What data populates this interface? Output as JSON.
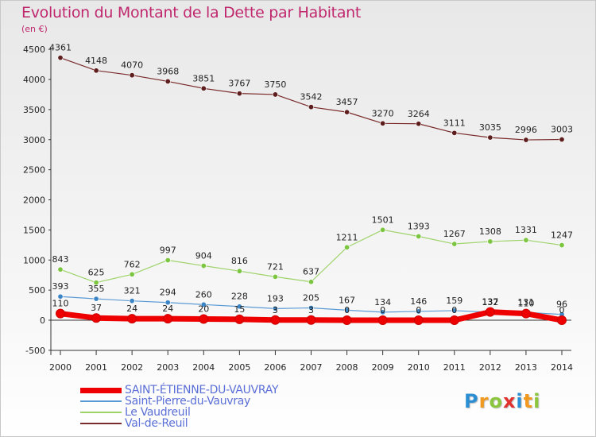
{
  "title": "Evolution du Montant de la Dette par Habitant",
  "unit_label": "(en €)",
  "logo": {
    "text": "Proxiti",
    "letters": [
      {
        "ch": "P",
        "color": "#2d8fd3"
      },
      {
        "ch": "r",
        "color": "#f29a1f"
      },
      {
        "ch": "o",
        "color": "#8cc63f"
      },
      {
        "ch": "x",
        "color": "#e0312f"
      },
      {
        "ch": "i",
        "color": "#2d8fd3"
      },
      {
        "ch": "t",
        "color": "#f29a1f"
      },
      {
        "ch": "i",
        "color": "#8cc63f"
      }
    ]
  },
  "chart_data": {
    "type": "line",
    "title": "Evolution du Montant de la Dette par Habitant",
    "ylabel": "(en €)",
    "ylim": [
      -500,
      4500
    ],
    "yticks": [
      -500,
      0,
      500,
      1000,
      1500,
      2000,
      2500,
      3000,
      3500,
      4000,
      4500
    ],
    "x": [
      2000,
      2001,
      2002,
      2003,
      2004,
      2005,
      2006,
      2007,
      2008,
      2009,
      2010,
      2011,
      2012,
      2013,
      2014
    ],
    "grid": false,
    "legend_position": "bottom-left",
    "series": [
      {
        "name": "Val-de-Reuil",
        "color": "#7a2b2b",
        "marker": "#5e1e1e",
        "width": 1.2,
        "values": [
          4361,
          4148,
          4070,
          3968,
          3851,
          3767,
          3750,
          3542,
          3457,
          3270,
          3264,
          3111,
          3035,
          2996,
          3003
        ]
      },
      {
        "name": "Le Vaudreuil",
        "color": "#9ed36a",
        "marker": "#7cc540",
        "width": 1.2,
        "values": [
          843,
          625,
          762,
          997,
          904,
          816,
          721,
          637,
          1211,
          1501,
          1393,
          1267,
          1308,
          1331,
          1247
        ]
      },
      {
        "name": "Saint-Pierre-du-Vauvray",
        "color": "#5b9bd5",
        "marker": "#3d86c6",
        "width": 1.2,
        "values": [
          393,
          355,
          321,
          294,
          260,
          228,
          193,
          205,
          167,
          134,
          146,
          159,
          132,
          131,
          96
        ]
      },
      {
        "name": "SAINT-ÉTIENNE-DU-VAUVRAY",
        "color": "#ee0000",
        "marker": "#ee0000",
        "width": 7,
        "values": [
          110,
          37,
          24,
          24,
          20,
          15,
          3,
          3,
          0,
          0,
          0,
          0,
          137,
          110,
          0
        ]
      }
    ]
  },
  "legend": [
    {
      "label": "SAINT-ÉTIENNE-DU-VAUVRAY",
      "color": "#ee0000",
      "text_color": "#5b6fd6",
      "thick": 7
    },
    {
      "label": "Saint-Pierre-du-Vauvray",
      "color": "#5b9bd5",
      "text_color": "#5b6fd6",
      "thick": 2
    },
    {
      "label": "Le Vaudreuil",
      "color": "#9ed36a",
      "text_color": "#5b6fd6",
      "thick": 2
    },
    {
      "label": "Val-de-Reuil",
      "color": "#7a2b2b",
      "text_color": "#5b6fd6",
      "thick": 2
    }
  ]
}
